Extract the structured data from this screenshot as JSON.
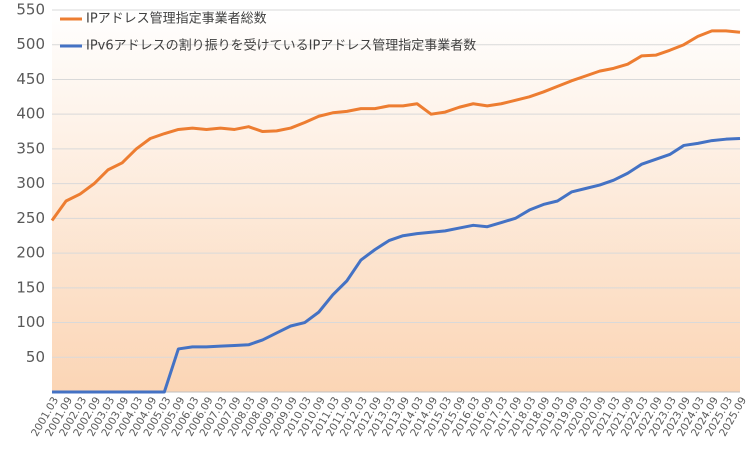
{
  "chart_data": {
    "type": "line",
    "categories": [
      "2001.03",
      "2001.09",
      "2002.03",
      "2002.09",
      "2003.03",
      "2003.09",
      "2004.03",
      "2004.09",
      "2005.03",
      "2005.09",
      "2006.03",
      "2006.09",
      "2007.03",
      "2007.09",
      "2008.03",
      "2008.09",
      "2009.03",
      "2009.09",
      "2010.03",
      "2010.09",
      "2011.03",
      "2011.09",
      "2012.03",
      "2012.09",
      "2013.03",
      "2013.09",
      "2014.03",
      "2014.09",
      "2015.03",
      "2015.09",
      "2016.03",
      "2016.09",
      "2017.03",
      "2017.09",
      "2018.03",
      "2018.09",
      "2019.03",
      "2019.09",
      "2020.03",
      "2020.09",
      "2021.03",
      "2021.09",
      "2022.03",
      "2022.09",
      "2023.03",
      "2023.09",
      "2024.03",
      "2024.09",
      "2025.03",
      "2025.09"
    ],
    "series": [
      {
        "name": "IPアドレス管理指定事業者総数",
        "color": "#ed7d31",
        "values": [
          247,
          275,
          285,
          300,
          320,
          330,
          350,
          365,
          372,
          378,
          380,
          378,
          380,
          378,
          382,
          375,
          376,
          380,
          388,
          397,
          402,
          404,
          408,
          408,
          412,
          412,
          415,
          400,
          403,
          410,
          415,
          412,
          415,
          420,
          425,
          432,
          440,
          448,
          455,
          462,
          466,
          472,
          484,
          485,
          492,
          500,
          512,
          520,
          520,
          518
        ]
      },
      {
        "name": "IPv6アドレスの割り振りを受けているIPアドレス管理指定事業者数",
        "color": "#4472c4",
        "values": [
          0,
          0,
          0,
          0,
          0,
          0,
          0,
          0,
          0,
          62,
          65,
          65,
          66,
          67,
          68,
          75,
          85,
          95,
          100,
          115,
          140,
          160,
          190,
          205,
          218,
          225,
          228,
          230,
          232,
          236,
          240,
          238,
          244,
          250,
          262,
          270,
          275,
          288,
          293,
          298,
          305,
          315,
          328,
          335,
          342,
          355,
          358,
          362,
          364,
          365
        ]
      }
    ],
    "ylim": [
      0,
      550
    ],
    "yticks": [
      50,
      100,
      150,
      200,
      250,
      300,
      350,
      400,
      450,
      500,
      550
    ],
    "grid": true,
    "legend": "top-left"
  }
}
